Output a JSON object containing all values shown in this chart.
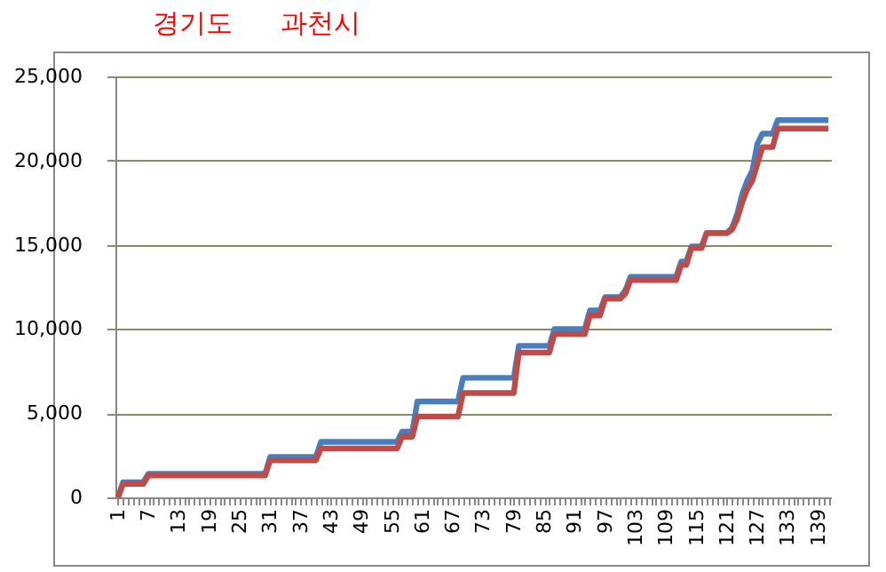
{
  "chart_data": {
    "type": "line",
    "annotations": [
      "경기도",
      "과천시"
    ],
    "categories": [
      "1",
      null,
      null,
      null,
      null,
      null,
      "7",
      null,
      null,
      null,
      null,
      null,
      "13",
      null,
      null,
      null,
      null,
      null,
      "19",
      null,
      null,
      null,
      null,
      null,
      "25",
      null,
      null,
      null,
      null,
      null,
      "31",
      null,
      null,
      null,
      null,
      null,
      "37",
      null,
      null,
      null,
      null,
      null,
      "43",
      null,
      null,
      null,
      null,
      null,
      "49",
      null,
      null,
      null,
      null,
      null,
      "55",
      null,
      null,
      null,
      null,
      null,
      "61",
      null,
      null,
      null,
      null,
      null,
      "67",
      null,
      null,
      null,
      null,
      null,
      "73",
      null,
      null,
      null,
      null,
      null,
      "79",
      null,
      null,
      null,
      null,
      null,
      "85",
      null,
      null,
      null,
      null,
      null,
      "91",
      null,
      null,
      null,
      null,
      null,
      "97",
      null,
      null,
      null,
      null,
      null,
      "103",
      null,
      null,
      null,
      null,
      null,
      "109",
      null,
      null,
      null,
      null,
      null,
      "115",
      null,
      null,
      null,
      null,
      null,
      "121",
      null,
      null,
      null,
      null,
      null,
      "127",
      null,
      null,
      null,
      null,
      null,
      "133",
      null,
      null,
      null,
      null,
      null,
      "139",
      null,
      null
    ],
    "series": [
      {
        "color": "#4a7ebb",
        "values": [
          0,
          900,
          900,
          900,
          900,
          900,
          1400,
          1400,
          1400,
          1400,
          1400,
          1400,
          1400,
          1400,
          1400,
          1400,
          1400,
          1400,
          1400,
          1400,
          1400,
          1400,
          1400,
          1400,
          1400,
          1400,
          1400,
          1400,
          1400,
          1400,
          2400,
          2400,
          2400,
          2400,
          2400,
          2400,
          2400,
          2400,
          2400,
          2400,
          3300,
          3300,
          3300,
          3300,
          3300,
          3300,
          3300,
          3300,
          3300,
          3300,
          3300,
          3300,
          3300,
          3300,
          3300,
          3300,
          3900,
          3900,
          3900,
          5700,
          5700,
          5700,
          5700,
          5700,
          5700,
          5700,
          5700,
          5700,
          7100,
          7100,
          7100,
          7100,
          7100,
          7100,
          7100,
          7100,
          7100,
          7100,
          7100,
          9000,
          9000,
          9000,
          9000,
          9000,
          9000,
          9000,
          10000,
          10000,
          10000,
          10000,
          10000,
          10000,
          10000,
          11100,
          11100,
          11100,
          11900,
          11900,
          11900,
          11900,
          12300,
          13100,
          13100,
          13100,
          13100,
          13100,
          13100,
          13100,
          13100,
          13100,
          13100,
          14000,
          14000,
          14900,
          14900,
          14900,
          15700,
          15700,
          15700,
          15700,
          15700,
          16000,
          16800,
          18000,
          18800,
          19400,
          21000,
          21600,
          21600,
          21600,
          22400,
          22400,
          22400,
          22400,
          22400,
          22400,
          22400,
          22400,
          22400,
          22400,
          22400
        ]
      },
      {
        "color": "#be4b48",
        "values": [
          0,
          800,
          800,
          800,
          800,
          800,
          1300,
          1300,
          1300,
          1300,
          1300,
          1300,
          1300,
          1300,
          1300,
          1300,
          1300,
          1300,
          1300,
          1300,
          1300,
          1300,
          1300,
          1300,
          1300,
          1300,
          1300,
          1300,
          1300,
          1300,
          2200,
          2200,
          2200,
          2200,
          2200,
          2200,
          2200,
          2200,
          2200,
          2200,
          2900,
          2900,
          2900,
          2900,
          2900,
          2900,
          2900,
          2900,
          2900,
          2900,
          2900,
          2900,
          2900,
          2900,
          2900,
          2900,
          3600,
          3600,
          3600,
          4800,
          4800,
          4800,
          4800,
          4800,
          4800,
          4800,
          4800,
          4800,
          6200,
          6200,
          6200,
          6200,
          6200,
          6200,
          6200,
          6200,
          6200,
          6200,
          6200,
          8600,
          8600,
          8600,
          8600,
          8600,
          8600,
          8600,
          9700,
          9700,
          9700,
          9700,
          9700,
          9700,
          9700,
          10800,
          10800,
          10800,
          11800,
          11800,
          11800,
          11800,
          12100,
          12900,
          12900,
          12900,
          12900,
          12900,
          12900,
          12900,
          12900,
          12900,
          12900,
          13800,
          13800,
          14800,
          14800,
          14800,
          15700,
          15700,
          15700,
          15700,
          15700,
          15900,
          16500,
          17500,
          18300,
          18800,
          19800,
          20800,
          20800,
          20800,
          21900,
          21900,
          21900,
          21900,
          21900,
          21900,
          21900,
          21900,
          21900,
          21900,
          21900
        ]
      }
    ],
    "ylim": [
      0,
      25000
    ],
    "yticks": [
      0,
      {
        "value": 5000,
        "label": "5,000"
      },
      {
        "value": 10000,
        "label": "10,000"
      },
      {
        "value": 15000,
        "label": "15,000"
      },
      {
        "value": 20000,
        "label": "20,000"
      },
      {
        "value": 25000,
        "label": "25,000"
      }
    ],
    "grid": "y",
    "legend": false
  }
}
